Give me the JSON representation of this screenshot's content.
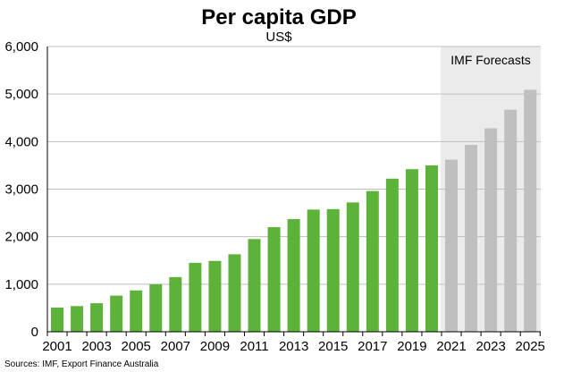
{
  "chart_data": {
    "type": "bar",
    "title": "Per capita GDP",
    "subtitle": "US$",
    "ylim": [
      0,
      6000
    ],
    "yticks": [
      0,
      1000,
      2000,
      3000,
      4000,
      5000,
      6000
    ],
    "ytick_labels": [
      "0",
      "1,000",
      "2,000",
      "3,000",
      "4,000",
      "5,000",
      "6,000"
    ],
    "categories": [
      "2001",
      "2002",
      "2003",
      "2004",
      "2005",
      "2006",
      "2007",
      "2008",
      "2009",
      "2010",
      "2011",
      "2012",
      "2013",
      "2014",
      "2015",
      "2016",
      "2017",
      "2018",
      "2019",
      "2020",
      "2021",
      "2022",
      "2023",
      "2024",
      "2025"
    ],
    "xtick_labels": [
      "2001",
      "2003",
      "2005",
      "2007",
      "2009",
      "2011",
      "2013",
      "2015",
      "2017",
      "2019",
      "2021",
      "2023",
      "2025"
    ],
    "values": [
      510,
      540,
      600,
      760,
      870,
      1000,
      1150,
      1450,
      1490,
      1630,
      1950,
      2200,
      2370,
      2570,
      2580,
      2720,
      2960,
      3220,
      3420,
      3500,
      3620,
      3930,
      4280,
      4670,
      5090
    ],
    "forecast_start": "2021",
    "forecast_label": "IMF Forecasts",
    "colors": {
      "actual": "#5db33a",
      "forecast": "#bfbfbf",
      "forecast_band": "#ebebeb",
      "gridline": "#bfbfbf",
      "axis": "#000000"
    },
    "grid": true,
    "source": "Sources: IMF, Export Finance Australia"
  }
}
